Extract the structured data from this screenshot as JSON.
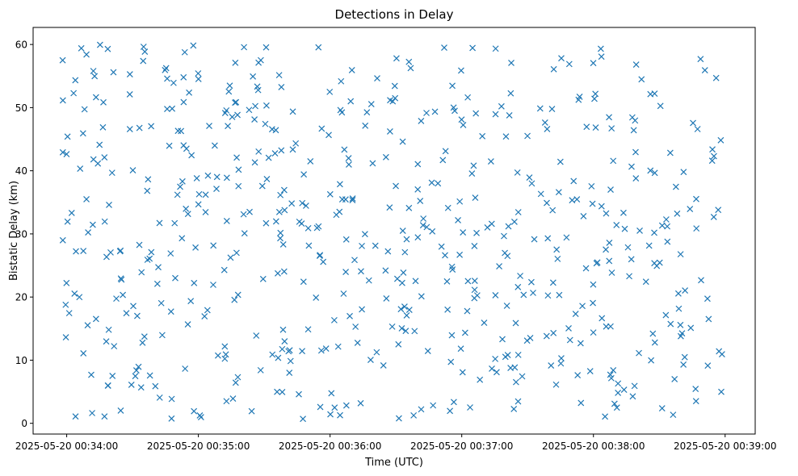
{
  "chart_data": {
    "type": "scatter",
    "title": "Detections in Delay",
    "xlabel": "Time (UTC)",
    "ylabel": "Bistatic Delay (km)",
    "marker": "x",
    "color": "#1f77b4",
    "xlim_seconds": [
      -15.3,
      313.7
    ],
    "ylim": [
      -1.7,
      62.7
    ],
    "x_unit": "seconds after 2025-05-20 00:34:00",
    "yticks": [
      0,
      10,
      20,
      30,
      40,
      50,
      60
    ],
    "ytick_labels": [
      "0",
      "10",
      "20",
      "30",
      "40",
      "50",
      "60"
    ],
    "xticks_seconds": [
      0,
      60,
      120,
      180,
      240,
      300
    ],
    "xtick_labels": [
      "2025-05-20 00:34:00",
      "2025-05-20 00:35:00",
      "2025-05-20 00:36:00",
      "2025-05-20 00:37:00",
      "2025-05-20 00:38:00",
      "2025-05-20 00:39:00"
    ],
    "series": [
      {
        "name": "Detections",
        "count": 600,
        "distribution": "uniform",
        "x_range_seconds": [
          -2,
          300
        ],
        "y_range": [
          0.5,
          60
        ]
      }
    ]
  }
}
